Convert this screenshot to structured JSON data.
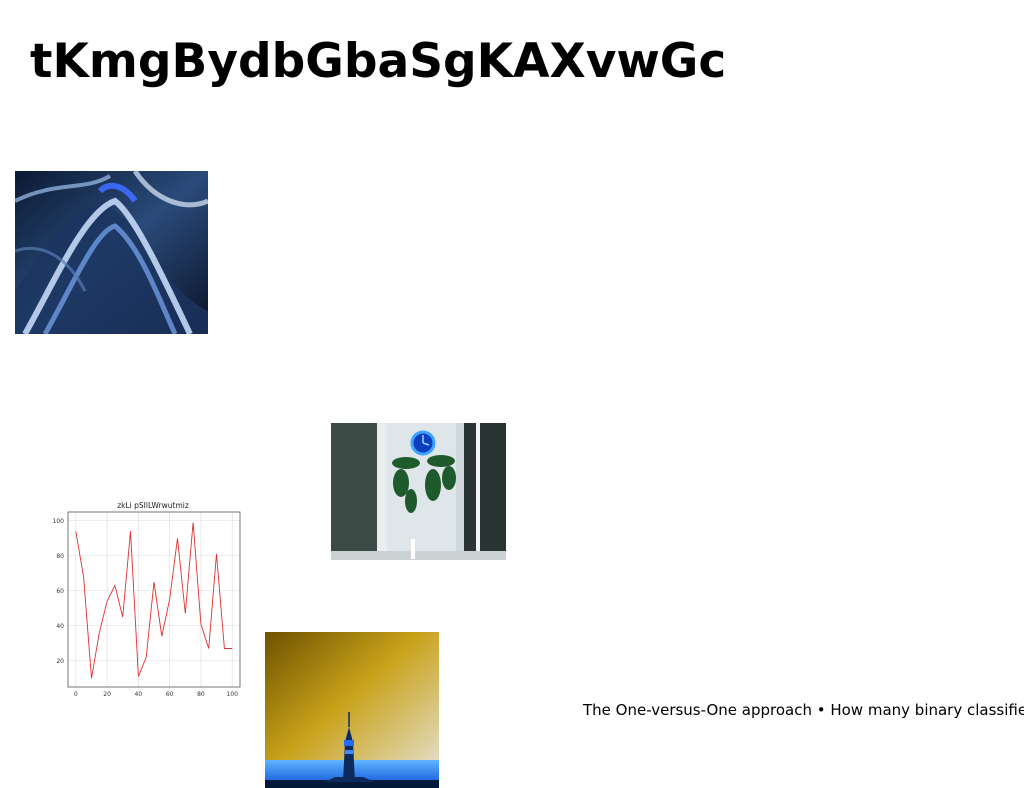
{
  "page": {
    "title": "tKmgBydbGbaSgKAXvwGc",
    "caption": "The One-versus-One approach • How many binary classifiers"
  },
  "images": {
    "abstract": "abstract-metallic-blue-image",
    "window": "window-plant-neon-image",
    "tower": "tower-skyline-image"
  },
  "chart_data": {
    "type": "line",
    "title": "zkLi pSIlLWrwutmiz",
    "xlabel": "",
    "ylabel": "",
    "x": [
      0,
      4,
      8,
      12,
      16,
      20,
      24,
      28,
      32,
      36,
      40,
      44,
      48,
      52,
      56,
      60,
      64,
      68,
      72,
      76,
      80,
      84,
      88,
      92,
      96,
      100
    ],
    "series": [
      {
        "color": "#e03030",
        "values": [
          94,
          68,
          10,
          36,
          54,
          63,
          45,
          94,
          11,
          22,
          65,
          34,
          55,
          90,
          47,
          99,
          41,
          27,
          81,
          27,
          27,
          27,
          27,
          27,
          27,
          27
        ]
      }
    ],
    "x_ticks": [
      "0",
      "20",
      "40",
      "60",
      "80",
      "100"
    ],
    "y_ticks": [
      "20",
      "40",
      "60",
      "80",
      "100"
    ],
    "xlim": [
      -5,
      105
    ],
    "ylim": [
      5,
      105
    ],
    "grid": true
  }
}
